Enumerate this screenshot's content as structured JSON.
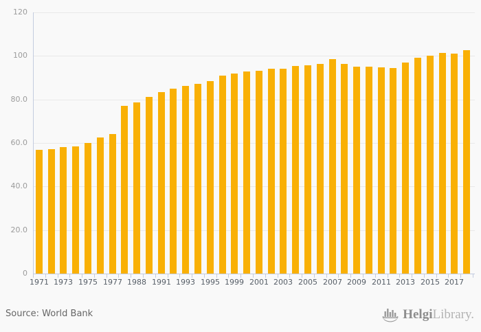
{
  "chart_data": {
    "type": "bar",
    "title": "",
    "xlabel": "",
    "ylabel": "",
    "ylim": [
      0,
      120
    ],
    "grid": true,
    "legend": "none",
    "categories": [
      1971,
      1972,
      1973,
      1974,
      1975,
      1976,
      1977,
      1987,
      1988,
      1990,
      1991,
      1992,
      1993,
      1994,
      1995,
      1998,
      1999,
      2000,
      2001,
      2002,
      2003,
      2004,
      2005,
      2006,
      2007,
      2008,
      2009,
      2010,
      2011,
      2012,
      2013,
      2014,
      2015,
      2016,
      2017,
      2018
    ],
    "values": [
      56.9,
      57.2,
      58.0,
      58.3,
      60.0,
      62.4,
      64.1,
      77.0,
      78.6,
      81.3,
      83.5,
      85.0,
      86.1,
      87.0,
      88.5,
      91.0,
      92.0,
      92.9,
      93.2,
      94.2,
      94.0,
      95.4,
      95.7,
      96.2,
      98.4,
      96.2,
      95.2,
      95.0,
      94.8,
      94.5,
      97.0,
      99.1,
      100.2,
      101.3,
      101.2,
      102.5
    ],
    "x_tick_labels": [
      "1971",
      "1973",
      "1975",
      "1977",
      "1988",
      "1991",
      "1993",
      "1995",
      "1999",
      "2001",
      "2003",
      "2005",
      "2007",
      "2009",
      "2011",
      "2013",
      "2015",
      "2017"
    ],
    "y_ticks": [
      {
        "value": 0,
        "label": "0"
      },
      {
        "value": 20,
        "label": "20.0"
      },
      {
        "value": 40,
        "label": "40.0"
      },
      {
        "value": 60,
        "label": "60.0"
      },
      {
        "value": 80,
        "label": "80.0"
      },
      {
        "value": 100,
        "label": "100"
      },
      {
        "value": 120,
        "label": "120"
      }
    ]
  },
  "colors": {
    "background": "#f9f9f9",
    "bar": "#F9B005",
    "grid": "#e9e9e9",
    "axis": "#c3cbdf",
    "y_label": "#9b9b9b",
    "x_label": "#565e67",
    "source_text": "#666666",
    "brand_primary": "#8d8d8d",
    "brand_secondary": "#b3b3b3",
    "brand_icon": "#9a9a9a"
  },
  "footer": {
    "source_label": "Source: World Bank"
  },
  "branding": {
    "name_primary": "Helgi",
    "name_secondary": "Library."
  }
}
